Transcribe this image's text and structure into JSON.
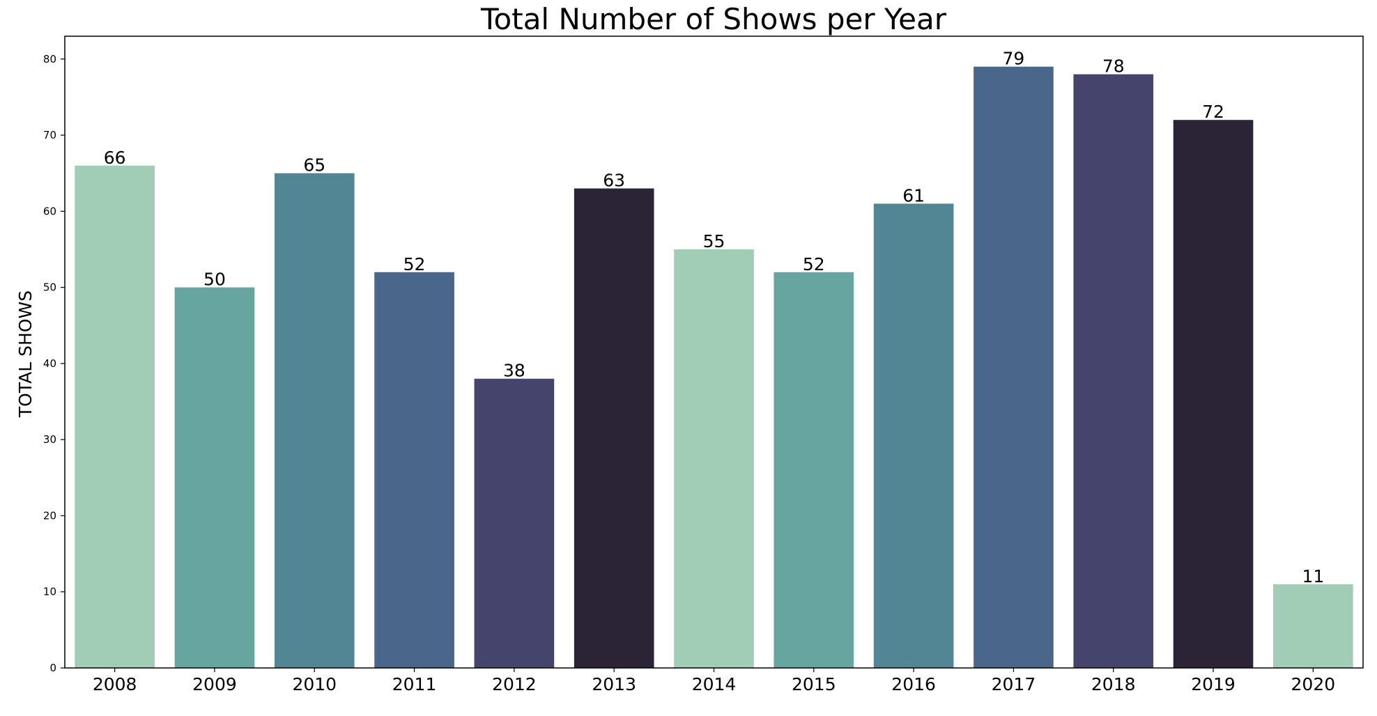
{
  "chart_data": {
    "type": "bar",
    "title": "Total Number of Shows per Year",
    "xlabel": "",
    "ylabel": "TOTAL SHOWS",
    "ylim": [
      0,
      83
    ],
    "yticks": [
      0,
      10,
      20,
      30,
      40,
      50,
      60,
      70,
      80
    ],
    "grid": false,
    "legend": "none",
    "categories": [
      "2008",
      "2009",
      "2010",
      "2011",
      "2012",
      "2013",
      "2014",
      "2015",
      "2016",
      "2017",
      "2018",
      "2019",
      "2020"
    ],
    "values": [
      66,
      50,
      65,
      52,
      38,
      63,
      55,
      52,
      61,
      79,
      78,
      72,
      11
    ],
    "palette": [
      "#a1cdb6",
      "#66a5a0",
      "#528695",
      "#4a668b",
      "#45446d",
      "#2b2437"
    ]
  }
}
